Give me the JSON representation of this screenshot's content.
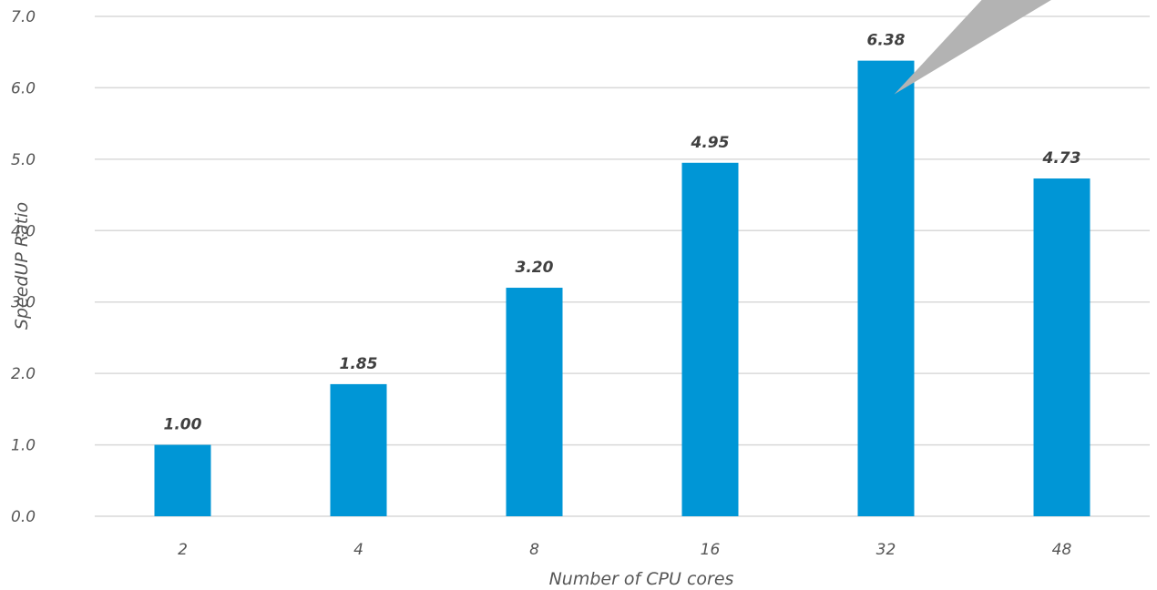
{
  "chart_data": {
    "type": "bar",
    "categories": [
      "2",
      "4",
      "8",
      "16",
      "32",
      "48"
    ],
    "values": [
      1.0,
      1.85,
      3.2,
      4.95,
      6.38,
      4.73
    ],
    "data_labels": [
      "1.00",
      "1.85",
      "3.20",
      "4.95",
      "6.38",
      "4.73"
    ],
    "highlight_label_index": 0,
    "title": "",
    "xlabel": "Number of CPU cores",
    "ylabel": "SpeedUP Ratio",
    "ylim": [
      0,
      7
    ],
    "yticks": [
      "0.0",
      "1.0",
      "2.0",
      "3.0",
      "4.0",
      "5.0",
      "6.0",
      "7.0"
    ],
    "grid": true,
    "annotation": {
      "type": "callout-pointer",
      "target_category": "32"
    }
  },
  "colors": {
    "bar": "#0096D6",
    "grid": "#D9D9D9",
    "highlight_label": "#E8001C",
    "callout": "#B3B3B3"
  }
}
